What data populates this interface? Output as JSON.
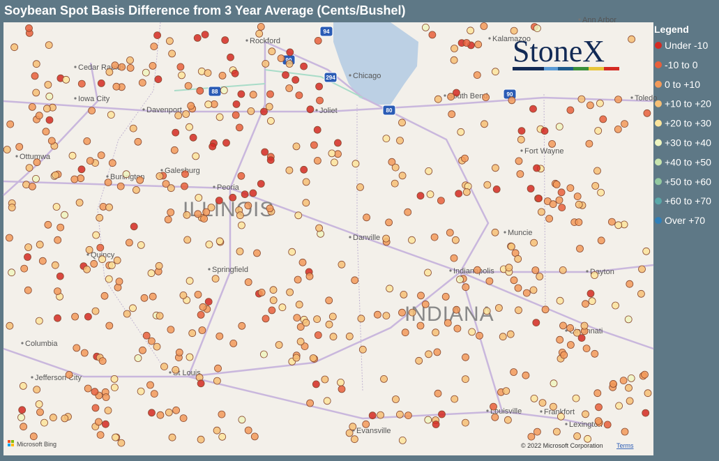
{
  "header": {
    "title": "Soybean Spot Basis Difference from 3 Year Average (Cents/Bushel)"
  },
  "legend": {
    "title": "Legend",
    "items": [
      {
        "label": "Under -10",
        "color": "#d42a22"
      },
      {
        "label": "-10 to 0",
        "color": "#e8603c"
      },
      {
        "label": "0 to +10",
        "color": "#f29a5a"
      },
      {
        "label": "+10 to +20",
        "color": "#f6bf76"
      },
      {
        "label": "+20 to +30",
        "color": "#fbe49c"
      },
      {
        "label": "+30 to +40",
        "color": "#eef5c0"
      },
      {
        "label": "+40 to +50",
        "color": "#c8e4ae"
      },
      {
        "label": "+50 to +60",
        "color": "#93c9a0"
      },
      {
        "label": "+60 to +70",
        "color": "#5aa8a8"
      },
      {
        "label": "Over +70",
        "color": "#2f7fb8"
      }
    ]
  },
  "logo": "StoneX",
  "map": {
    "cities": [
      "Rockford",
      "Chicago",
      "Kalamazoo",
      "Ann Arbor",
      "Cedar Rapids",
      "Iowa City",
      "Davenport",
      "Joliet",
      "South Bend",
      "Toledo",
      "Ottumwa",
      "Burlington",
      "Galesburg",
      "Peoria",
      "Fort Wayne",
      "Quincy",
      "Springfield",
      "Danville",
      "Muncie",
      "Indianapolis",
      "Dayton",
      "Columbia",
      "Cincinnati",
      "St Louis",
      "Jefferson City",
      "Louisville",
      "Frankfort",
      "Lexington",
      "Evansville"
    ],
    "states": [
      "ILLINOIS",
      "INDIANA"
    ],
    "highways": [
      "94",
      "90",
      "294",
      "88",
      "80",
      "90"
    ]
  },
  "footer": {
    "provider": "Microsoft Bing",
    "copyright": "© 2022 Microsoft Corporation",
    "terms": "Terms"
  }
}
